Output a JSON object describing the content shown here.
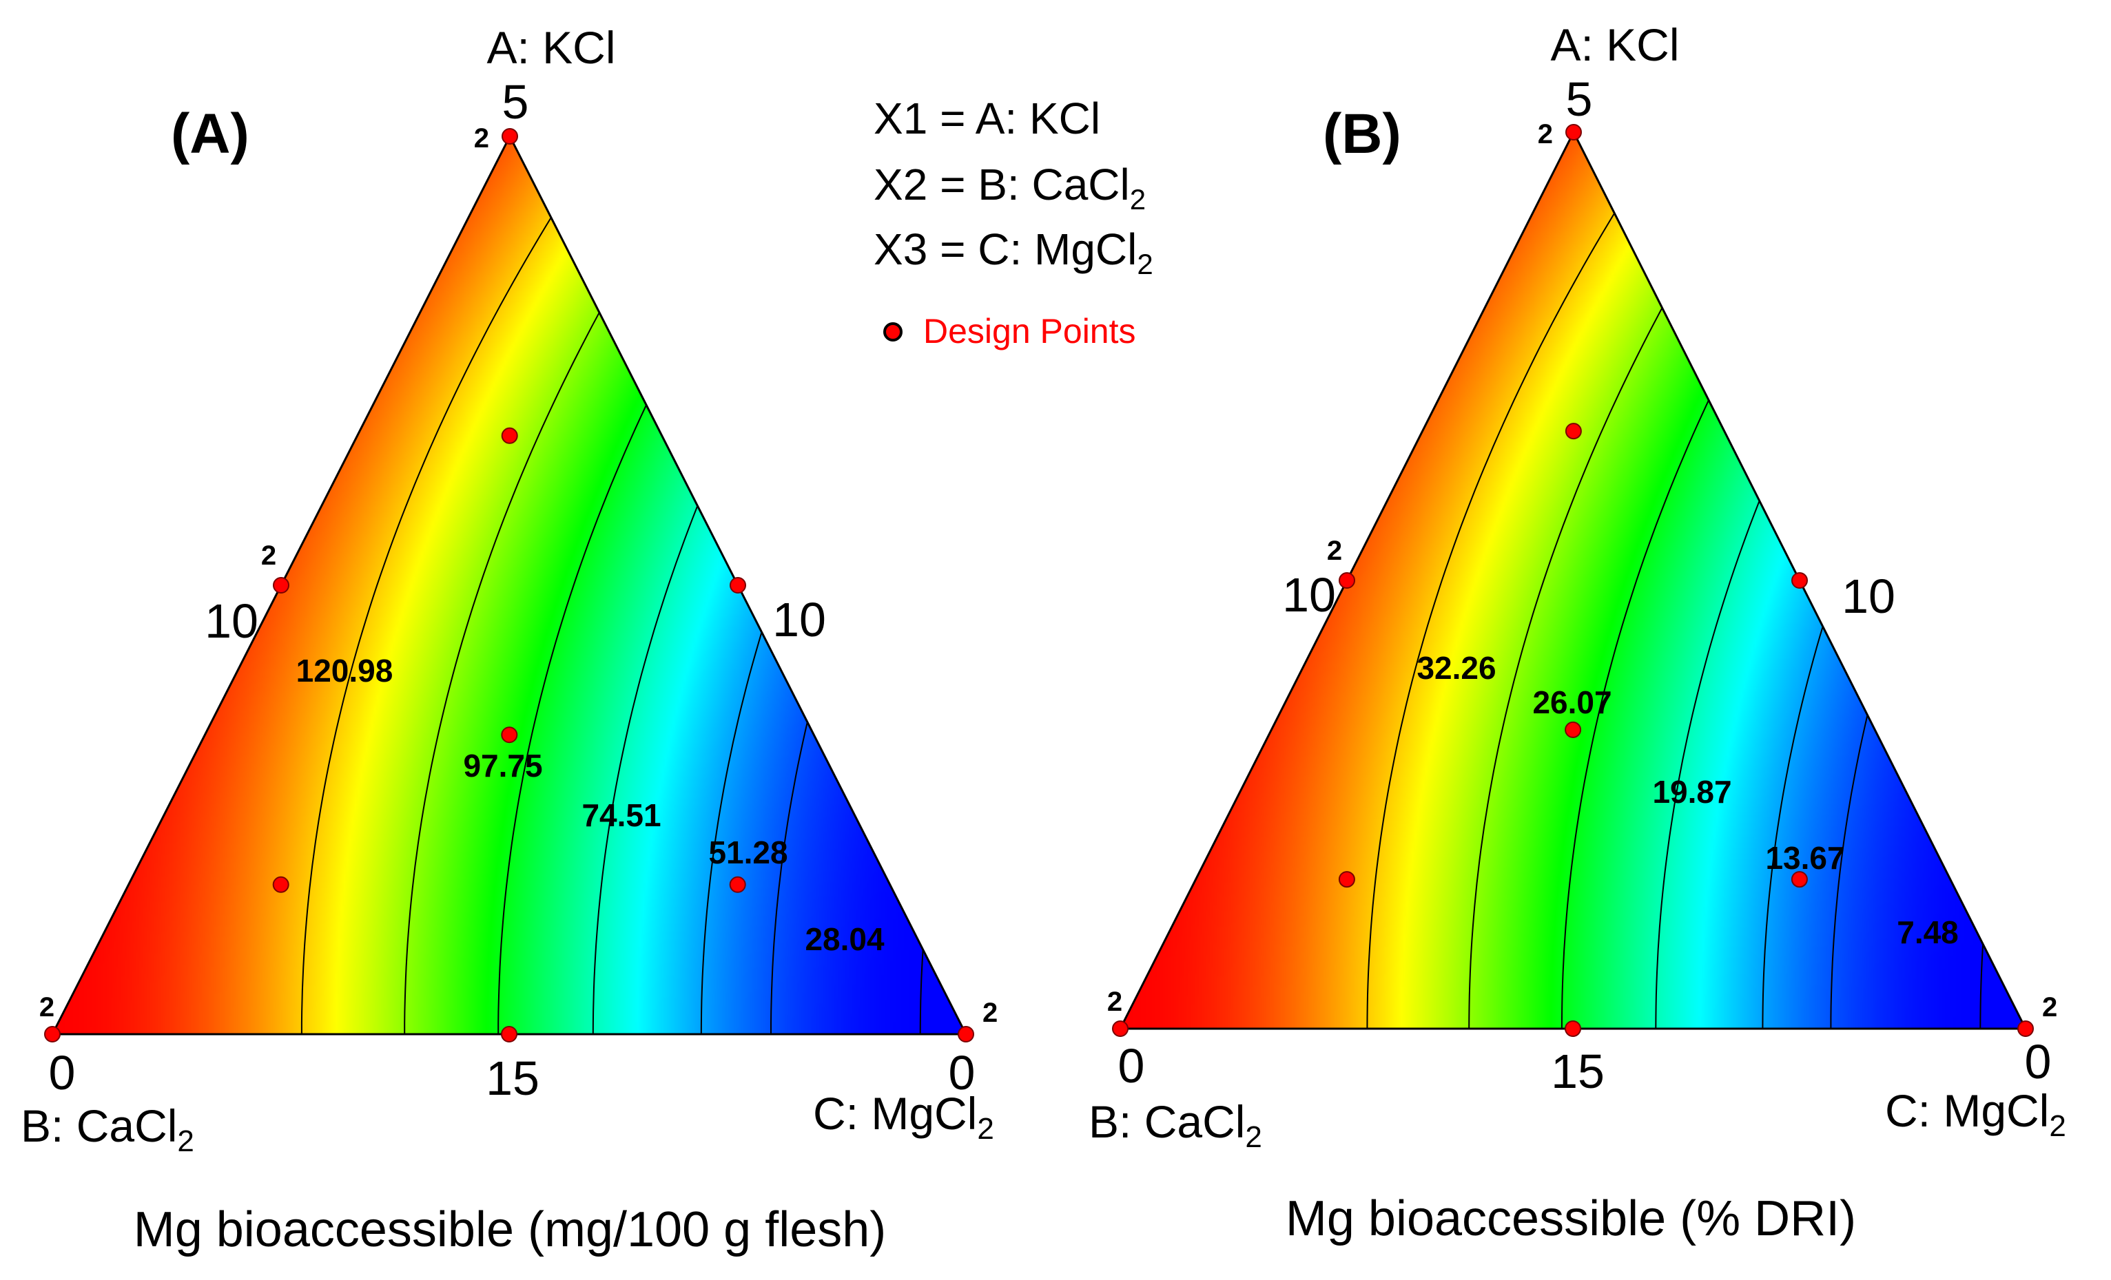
{
  "legend": {
    "x1_prefix": "X1 = ",
    "x1_label": "A: KCl",
    "x2_prefix": "X2 = ",
    "x2_label": "B: CaCl",
    "x2_sub": "2",
    "x3_prefix": "X3 = ",
    "x3_label": "C: MgCl",
    "x3_sub": "2",
    "design_points": "Design Points"
  },
  "chart_data": [
    {
      "type": "ternary_contour",
      "panel_label": "(A)",
      "xlabel": "Mg bioaccessible (mg/100 g flesh)",
      "vertices": {
        "top": {
          "label": "A: KCl"
        },
        "left": {
          "label": "B: CaCl",
          "sub": "2"
        },
        "right": {
          "label": "C: MgCl",
          "sub": "2"
        }
      },
      "ticks": {
        "top": "5",
        "left_mid": "10",
        "right_mid": "10",
        "left_bottom": "0",
        "bottom_mid": "15",
        "right_bottom": "0"
      },
      "contours": [
        {
          "level": 120.98,
          "label": "120.98"
        },
        {
          "level": 97.75,
          "label": "97.75"
        },
        {
          "level": 74.51,
          "label": "74.51"
        },
        {
          "level": 51.28,
          "label": "51.28"
        },
        {
          "level": 28.04,
          "label": "28.04"
        }
      ],
      "extra_contour_levels": [
        16.4,
        5.0
      ],
      "design_points": [
        {
          "a": 1.0,
          "b": 0.0,
          "c": 0.0,
          "count": "2"
        },
        {
          "a": 0.0,
          "b": 1.0,
          "c": 0.0,
          "count": "2"
        },
        {
          "a": 0.0,
          "b": 0.0,
          "c": 1.0,
          "count": "2"
        },
        {
          "a": 0.5,
          "b": 0.5,
          "c": 0.0,
          "count": "2"
        },
        {
          "a": 0.5,
          "b": 0.0,
          "c": 0.5
        },
        {
          "a": 0.0,
          "b": 0.5,
          "c": 0.5
        },
        {
          "a": 0.3333,
          "b": 0.3333,
          "c": 0.3333
        },
        {
          "a": 0.6667,
          "b": 0.1667,
          "c": 0.1667
        },
        {
          "a": 0.1667,
          "b": 0.6667,
          "c": 0.1667
        },
        {
          "a": 0.1667,
          "b": 0.1667,
          "c": 0.6667
        }
      ],
      "color_scale": {
        "min": 5.0,
        "max": 150.0,
        "colors": [
          "#0000ff",
          "#00ffff",
          "#00ff00",
          "#ffff00",
          "#ff0000"
        ]
      }
    },
    {
      "type": "ternary_contour",
      "panel_label": "(B)",
      "xlabel": "Mg bioaccessible (% DRI)",
      "vertices": {
        "top": {
          "label": "A: KCl"
        },
        "left": {
          "label": "B: CaCl",
          "sub": "2"
        },
        "right": {
          "label": "C: MgCl",
          "sub": "2"
        }
      },
      "ticks": {
        "top": "5",
        "left_mid": "10",
        "right_mid": "10",
        "left_bottom": "0",
        "bottom_mid": "15",
        "right_bottom": "0"
      },
      "contours": [
        {
          "level": 32.26,
          "label": "32.26"
        },
        {
          "level": 26.07,
          "label": "26.07"
        },
        {
          "level": 19.87,
          "label": "19.87"
        },
        {
          "level": 13.67,
          "label": "13.67"
        },
        {
          "level": 7.48,
          "label": "7.48"
        }
      ],
      "extra_contour_levels": [
        4.4,
        1.3
      ],
      "design_points": [
        {
          "a": 1.0,
          "b": 0.0,
          "c": 0.0,
          "count": "2"
        },
        {
          "a": 0.0,
          "b": 1.0,
          "c": 0.0,
          "count": "2"
        },
        {
          "a": 0.0,
          "b": 0.0,
          "c": 1.0,
          "count": "2"
        },
        {
          "a": 0.5,
          "b": 0.5,
          "c": 0.0,
          "count": "2"
        },
        {
          "a": 0.5,
          "b": 0.0,
          "c": 0.5
        },
        {
          "a": 0.0,
          "b": 0.5,
          "c": 0.5
        },
        {
          "a": 0.3333,
          "b": 0.3333,
          "c": 0.3333
        },
        {
          "a": 0.6667,
          "b": 0.1667,
          "c": 0.1667
        },
        {
          "a": 0.1667,
          "b": 0.6667,
          "c": 0.1667
        },
        {
          "a": 0.1667,
          "b": 0.1667,
          "c": 0.6667
        }
      ],
      "color_scale": {
        "min": 1.3,
        "max": 40.0,
        "colors": [
          "#0000ff",
          "#00ffff",
          "#00ff00",
          "#ffff00",
          "#ff0000"
        ]
      }
    }
  ]
}
